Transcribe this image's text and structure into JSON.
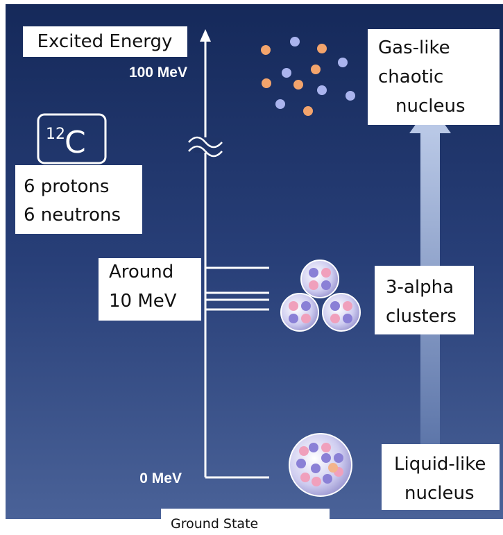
{
  "excited_energy": "Excited Energy",
  "top_energy": "100 MeV",
  "bottom_energy": "0 MeV",
  "element": {
    "mass": "12",
    "symbol": "C"
  },
  "composition": [
    "6 protons",
    "6 neutrons"
  ],
  "level_label": [
    "Around",
    "10 MeV"
  ],
  "states": [
    {
      "label": [
        "Gas-like",
        "chaotic",
        "nucleus"
      ]
    },
    {
      "label": [
        "3-alpha",
        "clusters"
      ]
    },
    {
      "label": [
        "Liquid-like",
        "nucleus"
      ]
    }
  ],
  "ground_state": "Ground State"
}
